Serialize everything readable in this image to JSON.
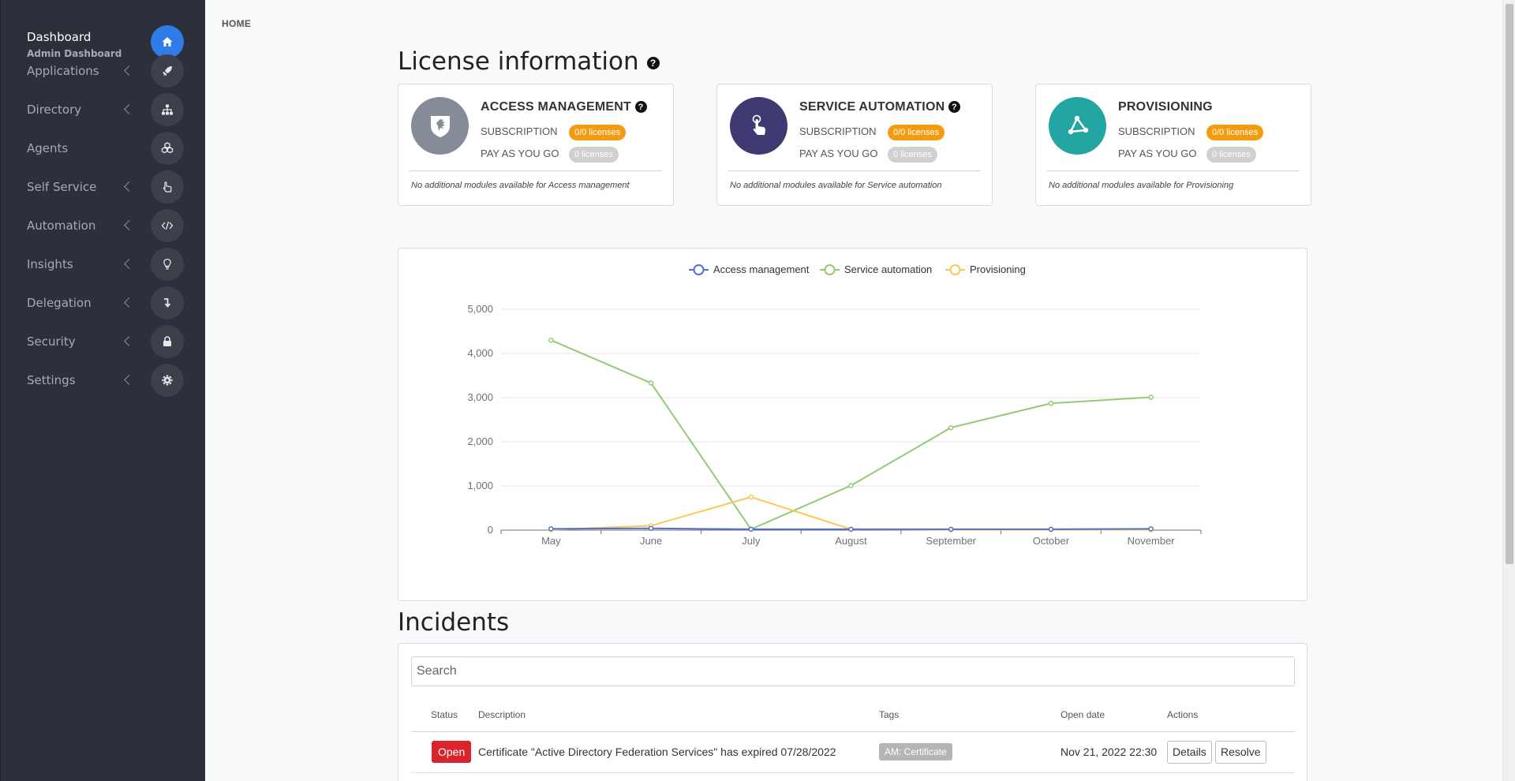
{
  "sidebar": {
    "dashboard": {
      "title": "Dashboard",
      "subtitle": "Admin Dashboard",
      "icon": "home-icon"
    },
    "items": [
      {
        "label": "Applications",
        "icon": "rocket-icon",
        "chevron": true
      },
      {
        "label": "Directory",
        "icon": "sitemap-icon",
        "chevron": true
      },
      {
        "label": "Agents",
        "icon": "cubes-icon",
        "chevron": false
      },
      {
        "label": "Self Service",
        "icon": "hand-pointer-icon",
        "chevron": true
      },
      {
        "label": "Automation",
        "icon": "code-icon",
        "chevron": true
      },
      {
        "label": "Insights",
        "icon": "lightbulb-icon",
        "chevron": true
      },
      {
        "label": "Delegation",
        "icon": "level-down-icon",
        "chevron": true
      },
      {
        "label": "Security",
        "icon": "lock-icon",
        "chevron": true
      },
      {
        "label": "Settings",
        "icon": "gear-icon",
        "chevron": true
      }
    ]
  },
  "breadcrumb": "HOME",
  "license": {
    "title": "License information",
    "help_glyph": "?",
    "cards": [
      {
        "name": "ACCESS MANAGEMENT",
        "help": true,
        "subscription_label": "SUBSCRIPTION",
        "subscription_value": "0/0 licenses",
        "payg_label": "PAY AS YOU GO",
        "payg_value": "0 licenses",
        "note": "No additional modules available for Access management",
        "color": "#858c98",
        "icon": "shield-icon"
      },
      {
        "name": "SERVICE AUTOMATION",
        "help": true,
        "subscription_label": "SUBSCRIPTION",
        "subscription_value": "0/0 licenses",
        "payg_label": "PAY AS YOU GO",
        "payg_value": "0 licenses",
        "note": "No additional modules available for Service automation",
        "color": "#3f3b72",
        "icon": "hand-pointer-icon"
      },
      {
        "name": "PROVISIONING",
        "help": false,
        "subscription_label": "SUBSCRIPTION",
        "subscription_value": "0/0 licenses",
        "payg_label": "PAY AS YOU GO",
        "payg_value": "0 licenses",
        "note": "No additional modules available for Provisioning",
        "color": "#23a5a4",
        "icon": "share-nodes-icon"
      }
    ]
  },
  "chart_data": {
    "type": "line",
    "categories": [
      "May",
      "June",
      "July",
      "August",
      "September",
      "October",
      "November"
    ],
    "ylim": [
      0,
      5000
    ],
    "yticks": [
      0,
      1000,
      2000,
      3000,
      4000,
      5000
    ],
    "ytick_labels": [
      "0",
      "1,000",
      "2,000",
      "3,000",
      "4,000",
      "5,000"
    ],
    "grid": true,
    "legend": "top-center",
    "series": [
      {
        "name": "Access management",
        "color": "#5470c6",
        "values": [
          30,
          40,
          20,
          20,
          20,
          20,
          30
        ]
      },
      {
        "name": "Service automation",
        "color": "#91cc75",
        "values": [
          4300,
          3330,
          20,
          1010,
          2320,
          2870,
          3010
        ]
      },
      {
        "name": "Provisioning",
        "color": "#fac858",
        "values": [
          10,
          100,
          750,
          20,
          10,
          10,
          10
        ]
      }
    ]
  },
  "incidents": {
    "title": "Incidents",
    "search_placeholder": "Search",
    "columns": {
      "status": "Status",
      "description": "Description",
      "tags": "Tags",
      "open_date": "Open date",
      "actions": "Actions"
    },
    "rows": [
      {
        "status": "Open",
        "description": "Certificate \"Active Directory Federation Services\" has expired 07/28/2022",
        "tag": "AM: Certificate",
        "open_date": "Nov 21, 2022 22:30",
        "details_label": "Details",
        "resolve_label": "Resolve"
      }
    ]
  }
}
